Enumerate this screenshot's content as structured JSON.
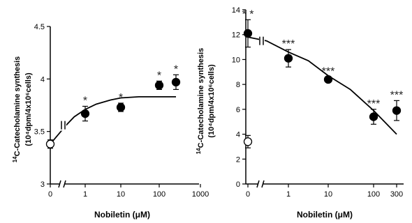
{
  "chart_data": [
    {
      "type": "scatter",
      "title": "",
      "xlabel": "Nobiletin (μM)",
      "ylabel_main": "C-Catecholamine synthesis",
      "ylabel_main_sup": "14",
      "ylabel_unit": "(10⁴dpm/4x10⁶cells)",
      "x_scale": "log with broken axis at 0",
      "xticks": [
        "0",
        "1",
        "10",
        "100",
        "1000"
      ],
      "yticks": [
        "3",
        "3.5",
        "4",
        "4.5"
      ],
      "ylim": [
        3,
        4.5
      ],
      "points": [
        {
          "x": 0,
          "y": 3.38,
          "err": 0.04,
          "filled": false,
          "sig": ""
        },
        {
          "x": 1,
          "y": 3.67,
          "err": 0.07,
          "filled": true,
          "sig": "*"
        },
        {
          "x": 10,
          "y": 3.73,
          "err": 0.04,
          "filled": true,
          "sig": "*"
        },
        {
          "x": 100,
          "y": 3.94,
          "err": 0.04,
          "filled": true,
          "sig": "*"
        },
        {
          "x": 300,
          "y": 3.97,
          "err": 0.07,
          "filled": true,
          "sig": "*"
        }
      ],
      "fit": [
        [
          0,
          3.38
        ],
        [
          0.3,
          3.56
        ],
        [
          0.5,
          3.64
        ],
        [
          1,
          3.71
        ],
        [
          2,
          3.76
        ],
        [
          5,
          3.8
        ],
        [
          10,
          3.82
        ],
        [
          30,
          3.83
        ],
        [
          100,
          3.83
        ],
        [
          300,
          3.83
        ]
      ],
      "grid": false,
      "legend": "none"
    },
    {
      "type": "scatter",
      "title": "",
      "xlabel": "Nobiletin (μM)",
      "ylabel_main": "C-Catecholamine synthesis",
      "ylabel_main_sup": "14",
      "ylabel_unit": "(10⁴dpm/4x10⁶cells)",
      "x_scale": "log with broken axis at 0",
      "xticks": [
        "0",
        "1",
        "10",
        "100",
        "300"
      ],
      "yticks": [
        "0",
        "2",
        "4",
        "6",
        "8",
        "10",
        "12",
        "14"
      ],
      "ylim": [
        0,
        14
      ],
      "points": [
        {
          "x": 0,
          "y": 3.4,
          "err": 0.5,
          "filled": false,
          "sig": ""
        },
        {
          "x": 0,
          "y": 12.1,
          "err": 1.1,
          "filled": true,
          "sig": "* *"
        },
        {
          "x": 1,
          "y": 10.1,
          "err": 0.7,
          "filled": true,
          "sig": "***"
        },
        {
          "x": 10,
          "y": 8.4,
          "err": 0.2,
          "filled": true,
          "sig": "***"
        },
        {
          "x": 100,
          "y": 5.4,
          "err": 0.6,
          "filled": true,
          "sig": "***"
        },
        {
          "x": 300,
          "y": 5.9,
          "err": 0.8,
          "filled": true,
          "sig": "***"
        }
      ],
      "fit": [
        [
          0,
          11.8
        ],
        [
          0.3,
          11.5
        ],
        [
          1,
          10.6
        ],
        [
          3,
          9.9
        ],
        [
          10,
          8.7
        ],
        [
          30,
          7.6
        ],
        [
          100,
          5.9
        ],
        [
          300,
          4.0
        ]
      ],
      "grid": false,
      "legend": "none"
    }
  ]
}
